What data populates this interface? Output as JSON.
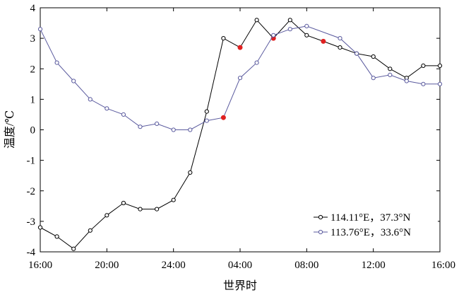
{
  "chart_data": {
    "type": "line",
    "title": "",
    "xlabel": "世界时",
    "ylabel": "温度/℃",
    "xlim": [
      0,
      24
    ],
    "ylim": [
      -4,
      4
    ],
    "yticks": [
      -4,
      -3,
      -2,
      -1,
      0,
      1,
      2,
      3,
      4
    ],
    "xtick_labels": [
      "16:00",
      "20:00",
      "24:00",
      "04:00",
      "08:00",
      "12:00",
      "16:00"
    ],
    "x": [
      "16:00",
      "17:00",
      "18:00",
      "19:00",
      "20:00",
      "21:00",
      "22:00",
      "23:00",
      "24:00",
      "01:00",
      "02:00",
      "03:00",
      "04:00",
      "05:00",
      "06:00",
      "07:00",
      "08:00",
      "09:00",
      "10:00",
      "11:00",
      "12:00",
      "13:00",
      "14:00",
      "15:00",
      "16:00"
    ],
    "grid": false,
    "legend_position": "bottom-right",
    "series": [
      {
        "name": "114.11°E，37.3°N",
        "color": "#000000",
        "values": [
          -3.2,
          -3.5,
          -3.9,
          -3.3,
          -2.8,
          -2.4,
          -2.6,
          -2.6,
          -2.3,
          -1.4,
          0.6,
          3.0,
          2.7,
          3.6,
          3.0,
          3.6,
          3.1,
          2.9,
          2.7,
          2.5,
          2.4,
          2.0,
          1.7,
          2.1,
          2.1
        ],
        "highlighted_indices": [
          12,
          14,
          17
        ]
      },
      {
        "name": "113.76°E，33.6°N",
        "color": "#5a5a9e",
        "values": [
          3.3,
          2.2,
          1.6,
          1.0,
          0.7,
          0.5,
          0.1,
          0.2,
          0.0,
          0.0,
          0.3,
          0.4,
          1.7,
          2.2,
          3.1,
          3.3,
          3.4,
          null,
          3.0,
          2.5,
          1.7,
          1.8,
          1.6,
          1.5,
          1.5
        ],
        "highlighted_indices": [
          11
        ]
      }
    ],
    "highlight_color": "#e02020"
  }
}
